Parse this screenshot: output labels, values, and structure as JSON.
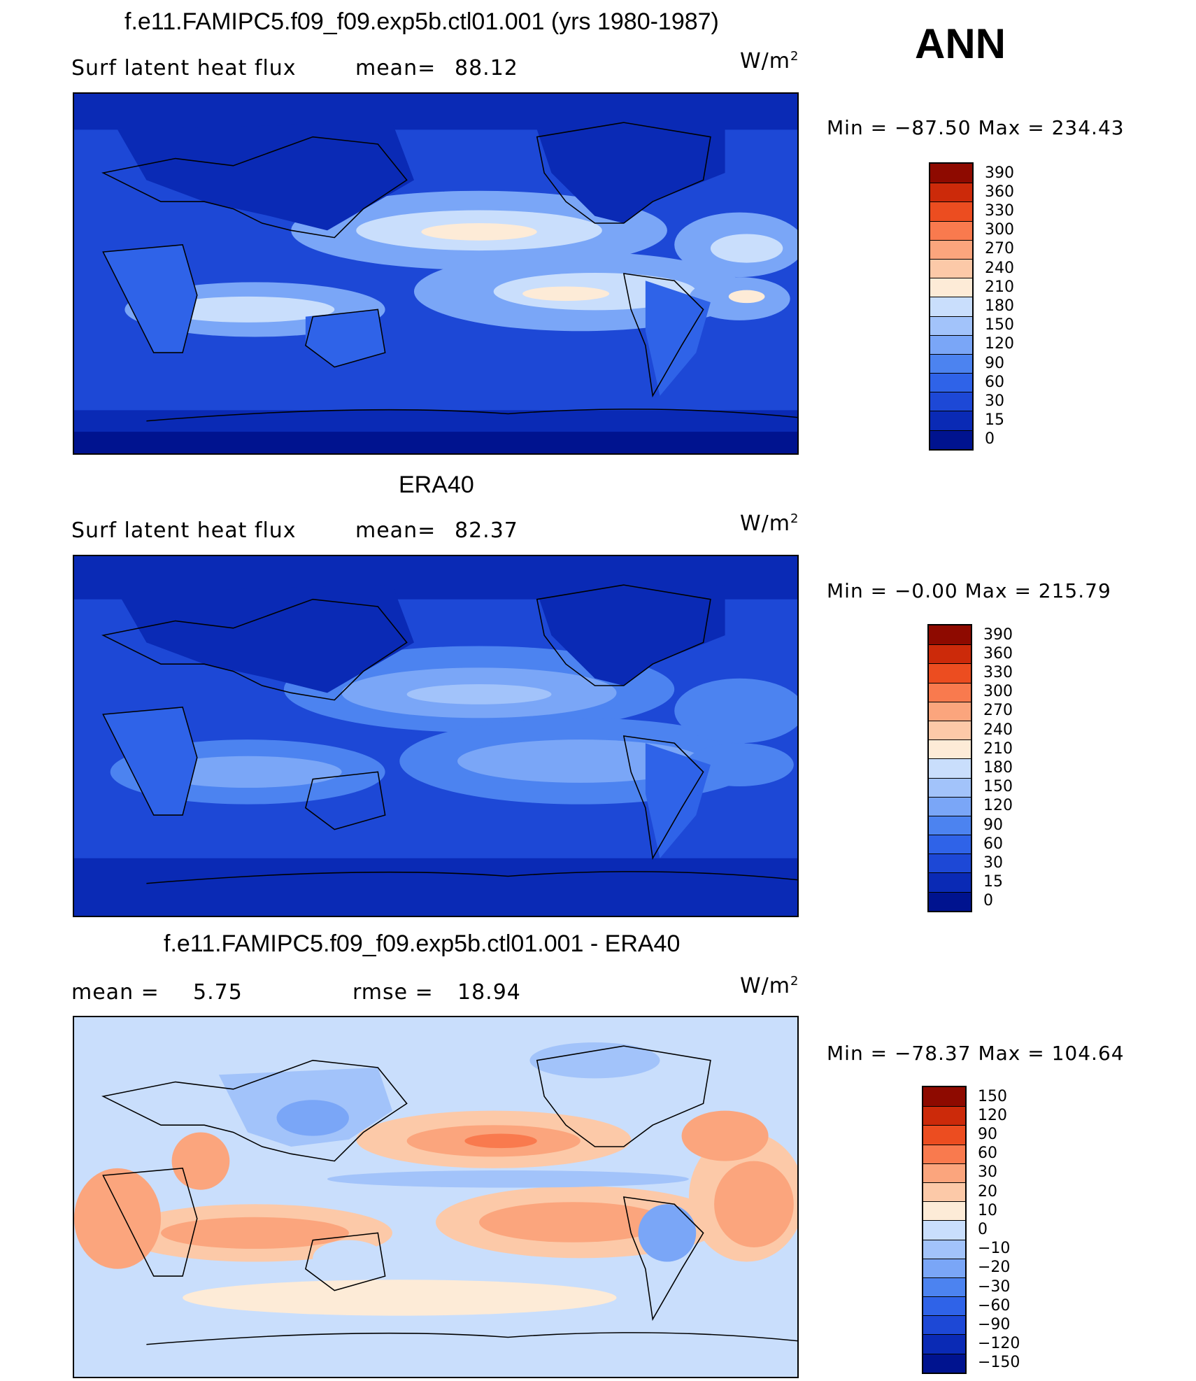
{
  "season": "ANN",
  "units_main": "W/m",
  "units_sup": "2",
  "panels": [
    {
      "title": "f.e11.FAMIPC5.f09_f09.exp5b.ctl01.001 (yrs 1980-1987)",
      "variable": "Surf latent heat flux",
      "mean_label": "mean=",
      "mean_value": "88.12",
      "minmax": "Min = −87.50 Max = 234.43",
      "colorbar": {
        "colors": [
          "#00138f",
          "#0a2ab5",
          "#1d48d6",
          "#2f63e8",
          "#4c83f0",
          "#7aa6f7",
          "#a2c3fa",
          "#c9defc",
          "#fdebd7",
          "#fcc9a8",
          "#fba57d",
          "#f97a4e",
          "#ec4d20",
          "#cc2a0a",
          "#8e0a00"
        ],
        "labels": [
          "0",
          "15",
          "30",
          "60",
          "90",
          "120",
          "150",
          "180",
          "210",
          "240",
          "270",
          "300",
          "330",
          "360",
          "390"
        ]
      }
    },
    {
      "title": "ERA40",
      "variable": "Surf latent heat flux",
      "mean_label": "mean=",
      "mean_value": "82.37",
      "minmax": "Min = −0.00 Max = 215.79",
      "colorbar": {
        "colors": [
          "#00138f",
          "#0a2ab5",
          "#1d48d6",
          "#2f63e8",
          "#4c83f0",
          "#7aa6f7",
          "#a2c3fa",
          "#c9defc",
          "#fdebd7",
          "#fcc9a8",
          "#fba57d",
          "#f97a4e",
          "#ec4d20",
          "#cc2a0a",
          "#8e0a00"
        ],
        "labels": [
          "0",
          "15",
          "30",
          "60",
          "90",
          "120",
          "150",
          "180",
          "210",
          "240",
          "270",
          "300",
          "330",
          "360",
          "390"
        ]
      }
    },
    {
      "title": "f.e11.FAMIPC5.f09_f09.exp5b.ctl01.001 - ERA40",
      "mean_label": "mean =",
      "mean_value": "5.75",
      "rmse_label": "rmse =",
      "rmse_value": "18.94",
      "minmax": "Min = −78.37 Max = 104.64",
      "colorbar": {
        "colors": [
          "#00138f",
          "#0a2ab5",
          "#1d48d6",
          "#2f63e8",
          "#4c83f0",
          "#7aa6f7",
          "#a2c3fa",
          "#c9defc",
          "#fdebd7",
          "#fcc9a8",
          "#fba57d",
          "#f97a4e",
          "#ec4d20",
          "#cc2a0a",
          "#8e0a00"
        ],
        "labels": [
          "−150",
          "−120",
          "−90",
          "−60",
          "−30",
          "−20",
          "−10",
          "0",
          "10",
          "20",
          "30",
          "60",
          "90",
          "120",
          "150"
        ]
      }
    }
  ]
}
